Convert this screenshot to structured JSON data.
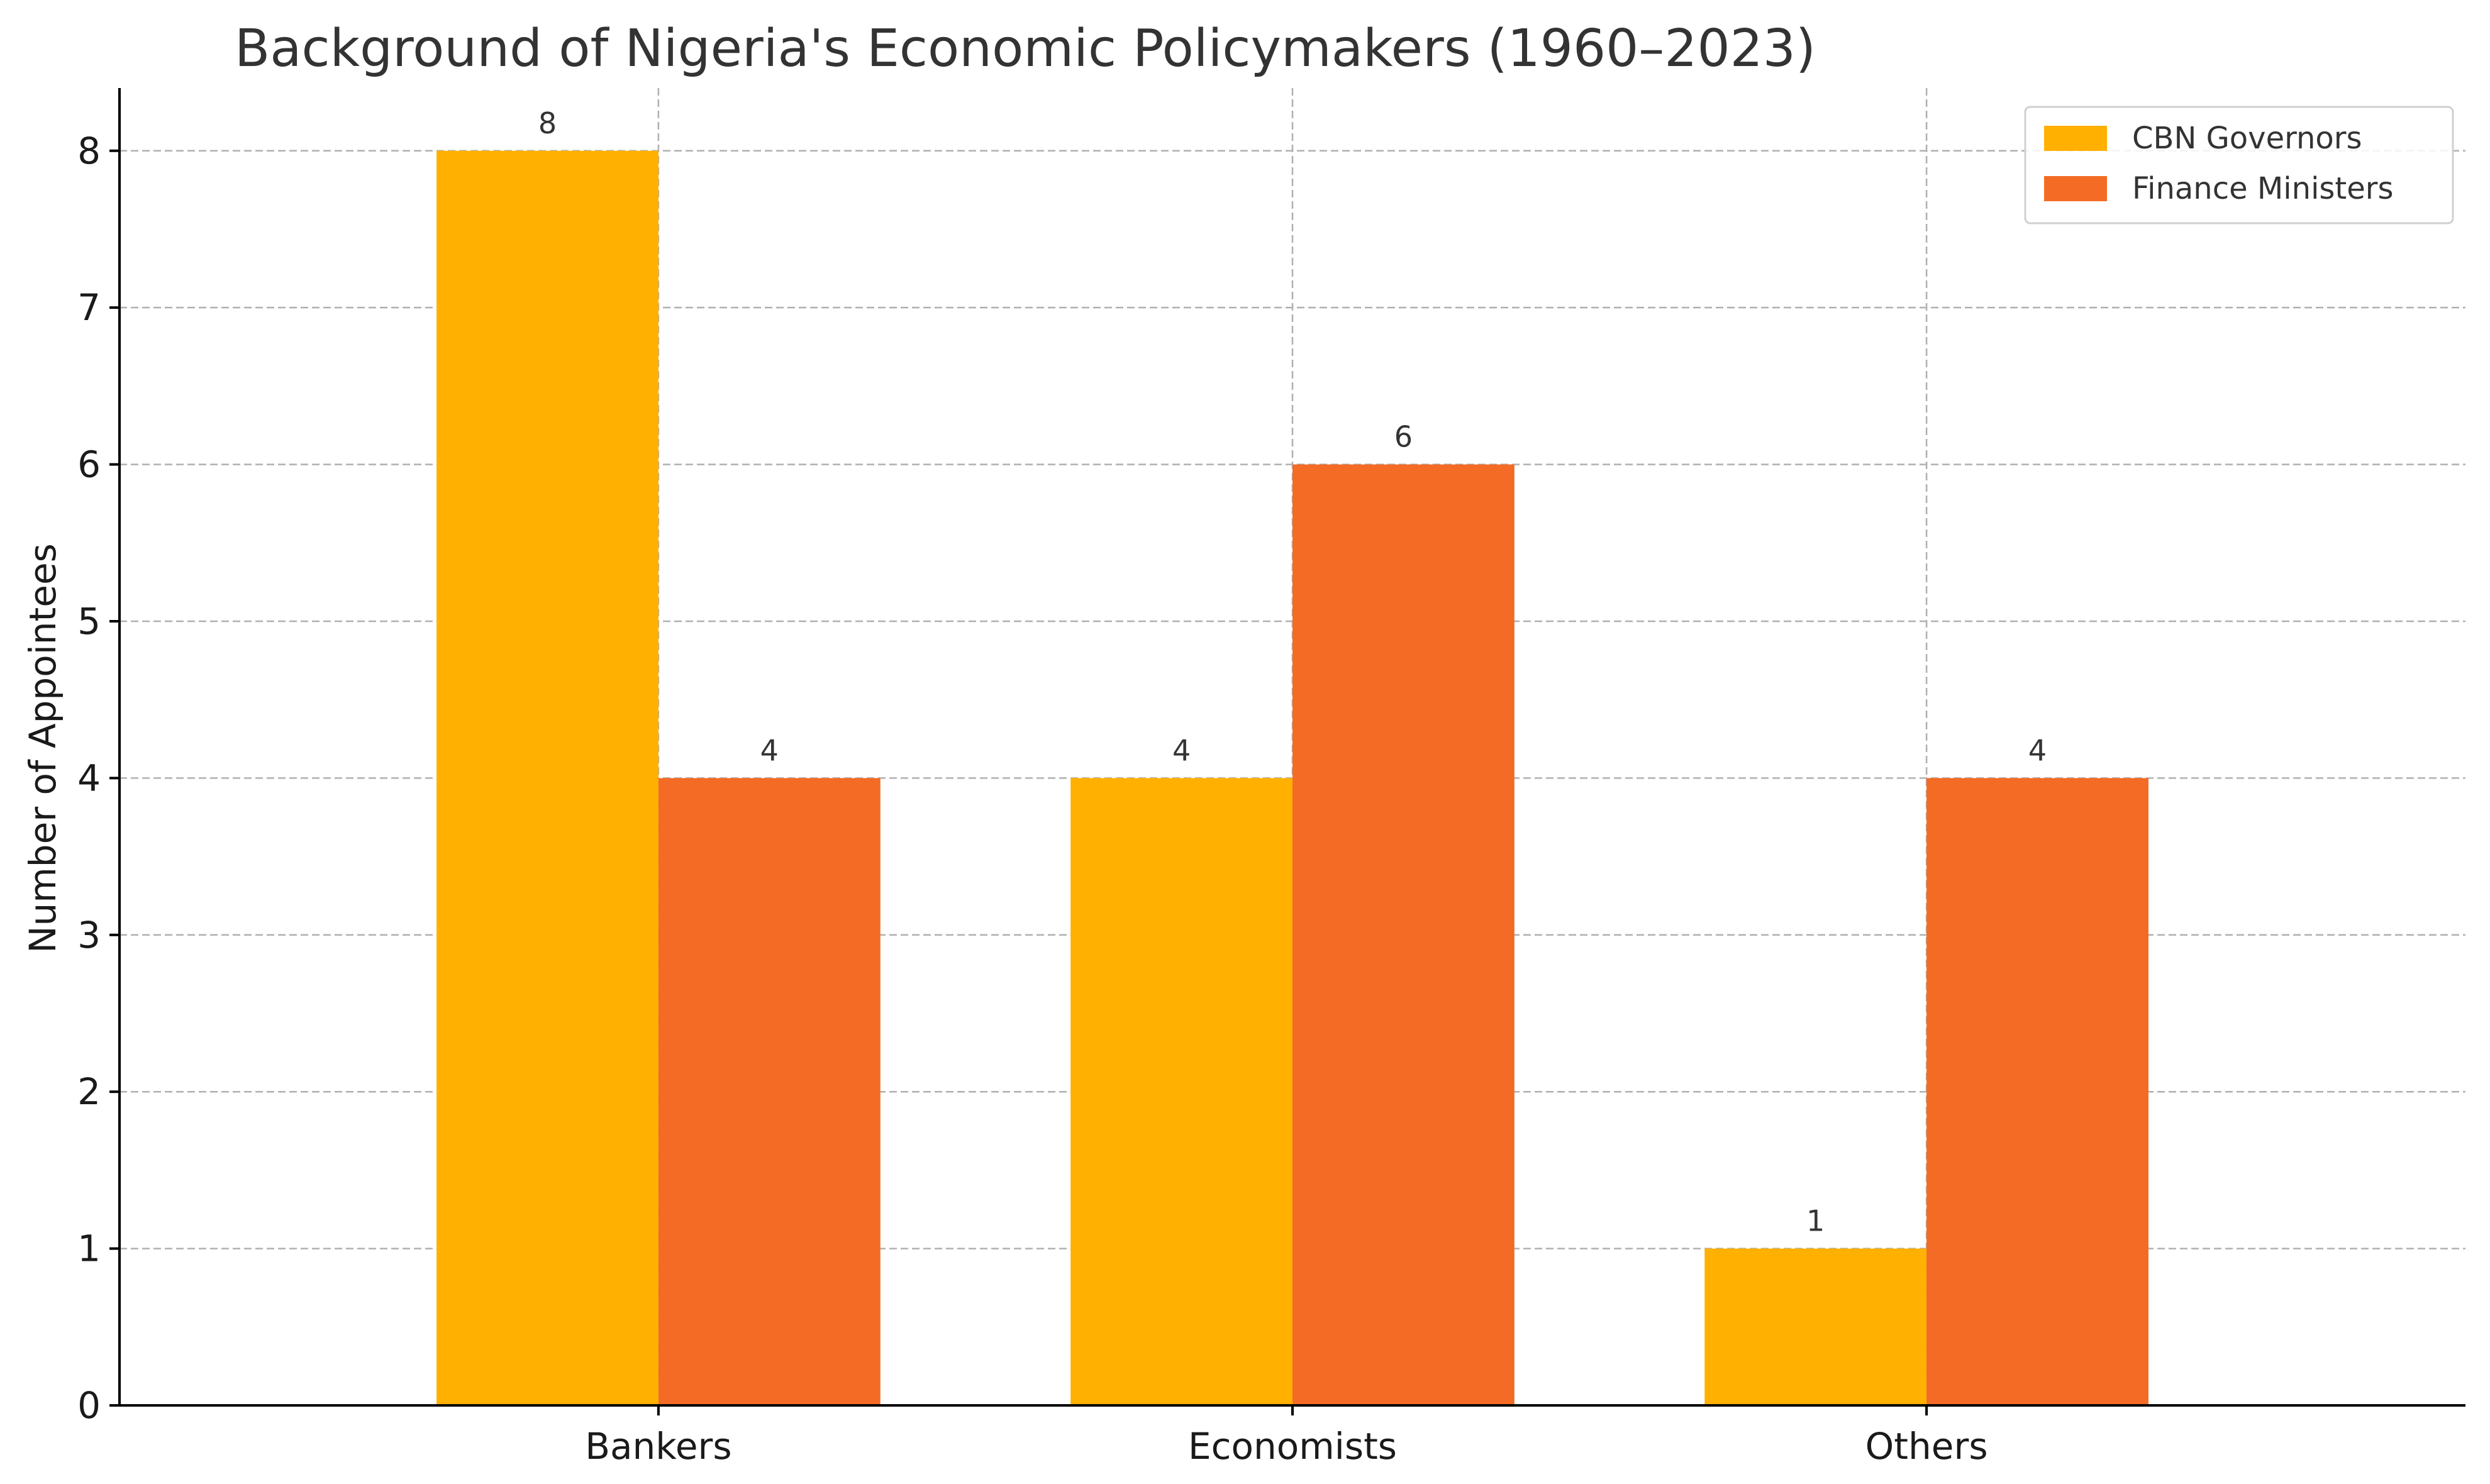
{
  "chart_data": {
    "type": "bar",
    "title": "Background of Nigeria's Economic Policymakers (1960–2023)",
    "xlabel": "",
    "ylabel": "Number of Appointees",
    "categories": [
      "Bankers",
      "Economists",
      "Others"
    ],
    "series": [
      {
        "name": "CBN Governors",
        "values": [
          8,
          4,
          1
        ],
        "color": "#FFB000"
      },
      {
        "name": "Finance Ministers",
        "values": [
          4,
          6,
          4
        ],
        "color": "#F36B24"
      }
    ],
    "ylim": [
      0,
      8.4
    ],
    "yticks": [
      0,
      1,
      2,
      3,
      4,
      5,
      6,
      7,
      8
    ],
    "grid": true,
    "legend_position": "top-right",
    "show_value_labels": true
  }
}
